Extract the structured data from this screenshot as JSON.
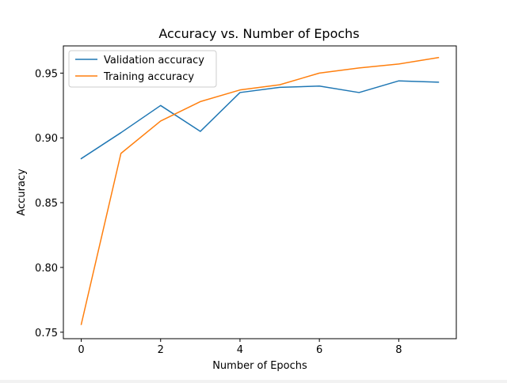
{
  "chart_data": {
    "type": "line",
    "title": "Accuracy vs. Number of Epochs",
    "xlabel": "Number of Epochs",
    "ylabel": "Accuracy",
    "x": [
      0,
      1,
      2,
      3,
      4,
      5,
      6,
      7,
      8,
      9
    ],
    "xlim": [
      -0.45,
      9.45
    ],
    "ylim": [
      0.745,
      0.971
    ],
    "xticks": [
      0,
      2,
      4,
      6,
      8
    ],
    "xtick_labels": [
      "0",
      "2",
      "4",
      "6",
      "8"
    ],
    "yticks": [
      0.75,
      0.8,
      0.85,
      0.9,
      0.95
    ],
    "ytick_labels": [
      "0.75",
      "0.80",
      "0.85",
      "0.90",
      "0.95"
    ],
    "grid": false,
    "legend_position": "top-left",
    "series": [
      {
        "name": "Validation accuracy",
        "color": "#1f77b4",
        "values": [
          0.884,
          0.904,
          0.925,
          0.905,
          0.935,
          0.939,
          0.94,
          0.935,
          0.944,
          0.943
        ]
      },
      {
        "name": "Training accuracy",
        "color": "#ff7f0e",
        "values": [
          0.756,
          0.888,
          0.913,
          0.928,
          0.937,
          0.941,
          0.95,
          0.954,
          0.957,
          0.962
        ]
      }
    ]
  }
}
